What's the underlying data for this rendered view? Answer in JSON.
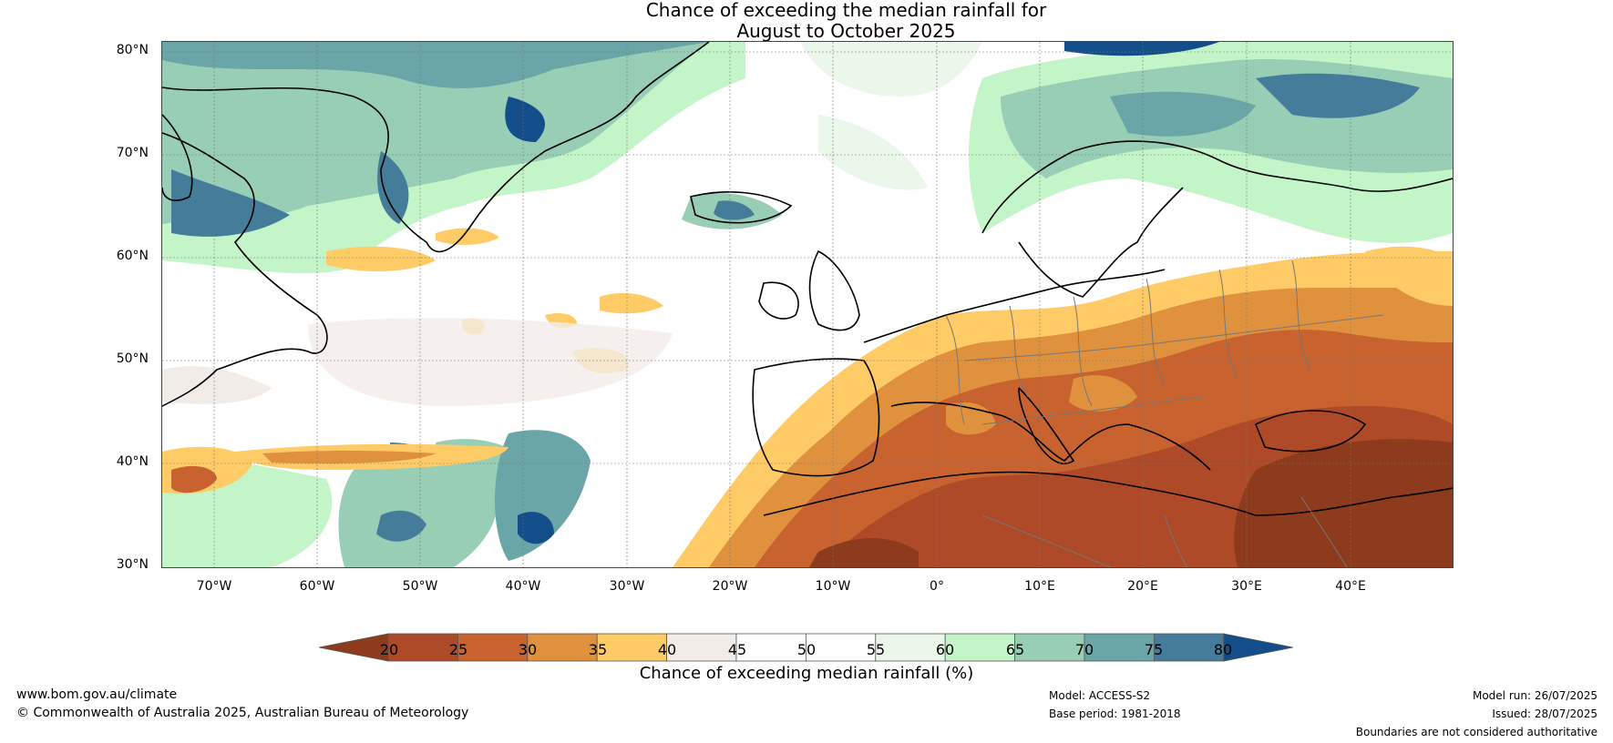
{
  "title": {
    "line1": "Chance of exceeding the median rainfall for",
    "line2": "August to October 2025"
  },
  "lat_labels": [
    "80°N",
    "70°N",
    "60°N",
    "50°N",
    "40°N",
    "30°N"
  ],
  "lon_labels": [
    "70°W",
    "60°W",
    "50°W",
    "40°W",
    "30°W",
    "20°W",
    "10°W",
    "0°",
    "10°E",
    "20°E",
    "30°E",
    "40°E"
  ],
  "colorbar": {
    "title": "Chance of exceeding median rainfall (%)",
    "ticks": [
      "20",
      "25",
      "30",
      "35",
      "40",
      "45",
      "50",
      "55",
      "60",
      "65",
      "70",
      "75",
      "80"
    ],
    "colors": [
      "#8e3a1c",
      "#ae4a28",
      "#c8622e",
      "#e0913e",
      "#ffcb66",
      "#f2ece8",
      "#ffffff",
      "#ffffff",
      "#eaf7ea",
      "#c4f5c8",
      "#98cdb6",
      "#6aa6a8",
      "#447c9a",
      "#134e8a"
    ]
  },
  "map": {
    "extent": {
      "lon_min": -75,
      "lon_max": 50,
      "lat_min": 30,
      "lat_max": 81
    },
    "grid": true
  },
  "footer": {
    "website": "www.bom.gov.au/climate",
    "copyright": "© Commonwealth of Australia 2025, Australian Bureau of Meteorology",
    "model": "Model: ACCESS-S2",
    "base_period": "Base period: 1981-2018",
    "model_run": "Model run: 26/07/2025",
    "issued": "Issued: 28/07/2025",
    "disclaimer": "Boundaries are not considered authoritative"
  }
}
